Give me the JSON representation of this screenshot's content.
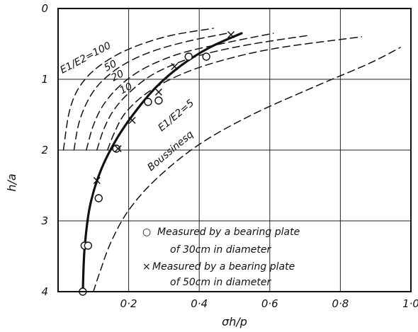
{
  "chart_data": {
    "type": "line",
    "xlabel": "σh/p",
    "ylabel": "h/a",
    "xlim": [
      0,
      1.0
    ],
    "ylim": [
      4,
      0
    ],
    "y_inverted": true,
    "x_ticks": [
      {
        "value": 0.2,
        "label": "0·2"
      },
      {
        "value": 0.4,
        "label": "0·4"
      },
      {
        "value": 0.6,
        "label": "0·6"
      },
      {
        "value": 0.8,
        "label": "0·8"
      },
      {
        "value": 1.0,
        "label": "1·0"
      }
    ],
    "y_ticks": [
      {
        "value": 0,
        "label": "0"
      },
      {
        "value": 1,
        "label": "1"
      },
      {
        "value": 2,
        "label": "2"
      },
      {
        "value": 3,
        "label": "3"
      },
      {
        "value": 4,
        "label": "4"
      }
    ],
    "grid": true,
    "series": [
      {
        "name": "E1/E2=100",
        "style": "dashed",
        "x": [
          0.015,
          0.03,
          0.05,
          0.08,
          0.12,
          0.18,
          0.25,
          0.33,
          0.44
        ],
        "y": [
          2.0,
          1.5,
          1.2,
          0.98,
          0.8,
          0.62,
          0.48,
          0.37,
          0.28
        ]
      },
      {
        "name": "50",
        "style": "dashed",
        "x": [
          0.045,
          0.06,
          0.09,
          0.13,
          0.19,
          0.27,
          0.37,
          0.48
        ],
        "y": [
          2.0,
          1.6,
          1.25,
          1.0,
          0.78,
          0.6,
          0.46,
          0.35
        ]
      },
      {
        "name": "20",
        "style": "dashed",
        "x": [
          0.08,
          0.1,
          0.13,
          0.18,
          0.25,
          0.35,
          0.48,
          0.61
        ],
        "y": [
          2.0,
          1.65,
          1.35,
          1.07,
          0.83,
          0.63,
          0.48,
          0.35
        ]
      },
      {
        "name": "10",
        "style": "dashed",
        "x": [
          0.11,
          0.13,
          0.16,
          0.21,
          0.28,
          0.39,
          0.53,
          0.71
        ],
        "y": [
          2.0,
          1.7,
          1.42,
          1.15,
          0.9,
          0.68,
          0.52,
          0.38
        ]
      },
      {
        "name": "E1/E2=5",
        "style": "dashed",
        "x": [
          0.14,
          0.16,
          0.19,
          0.25,
          0.34,
          0.46,
          0.62,
          0.86
        ],
        "y": [
          2.0,
          1.75,
          1.48,
          1.2,
          0.95,
          0.74,
          0.56,
          0.4
        ]
      },
      {
        "name": "Boussinesq",
        "style": "dashed",
        "x": [
          0.1,
          0.12,
          0.15,
          0.2,
          0.28,
          0.4,
          0.55,
          0.72,
          0.88,
          0.97
        ],
        "y": [
          4.0,
          3.7,
          3.3,
          2.85,
          2.4,
          1.92,
          1.5,
          1.12,
          0.78,
          0.55
        ]
      },
      {
        "name": "",
        "style": "solid-thick",
        "x": [
          0.07,
          0.075,
          0.09,
          0.12,
          0.165,
          0.22,
          0.28,
          0.35,
          0.43,
          0.52
        ],
        "y": [
          4.0,
          3.4,
          2.8,
          2.3,
          1.85,
          1.45,
          1.1,
          0.8,
          0.55,
          0.35
        ]
      }
    ],
    "scatter_circles": [
      {
        "x": 0.07,
        "y": 4.0
      },
      {
        "x": 0.075,
        "y": 3.35
      },
      {
        "x": 0.085,
        "y": 3.35
      },
      {
        "x": 0.115,
        "y": 2.68
      },
      {
        "x": 0.165,
        "y": 1.98
      },
      {
        "x": 0.255,
        "y": 1.32
      },
      {
        "x": 0.285,
        "y": 1.3
      },
      {
        "x": 0.37,
        "y": 0.68
      },
      {
        "x": 0.42,
        "y": 0.68
      }
    ],
    "scatter_crosses": [
      {
        "x": 0.11,
        "y": 2.43
      },
      {
        "x": 0.17,
        "y": 1.98
      },
      {
        "x": 0.21,
        "y": 1.58
      },
      {
        "x": 0.285,
        "y": 1.18
      },
      {
        "x": 0.33,
        "y": 0.82
      },
      {
        "x": 0.49,
        "y": 0.37
      }
    ],
    "annotations": [
      {
        "id": "e100",
        "text": "E1/E2=100"
      },
      {
        "id": "e50",
        "text": "50"
      },
      {
        "id": "e20",
        "text": "20"
      },
      {
        "id": "e10",
        "text": "10"
      },
      {
        "id": "e5",
        "text": "E1/E2=5"
      },
      {
        "id": "bouss",
        "text": "Boussinesq"
      }
    ],
    "legend": {
      "placement": "bottom-right",
      "entries": [
        {
          "marker": "○",
          "line1": "Measured by a bearing plate",
          "line2": "of 30cm in diameter"
        },
        {
          "marker": "×",
          "line1": "Measured by a bearing plate",
          "line2": "of 50cm in diameter"
        }
      ]
    }
  }
}
